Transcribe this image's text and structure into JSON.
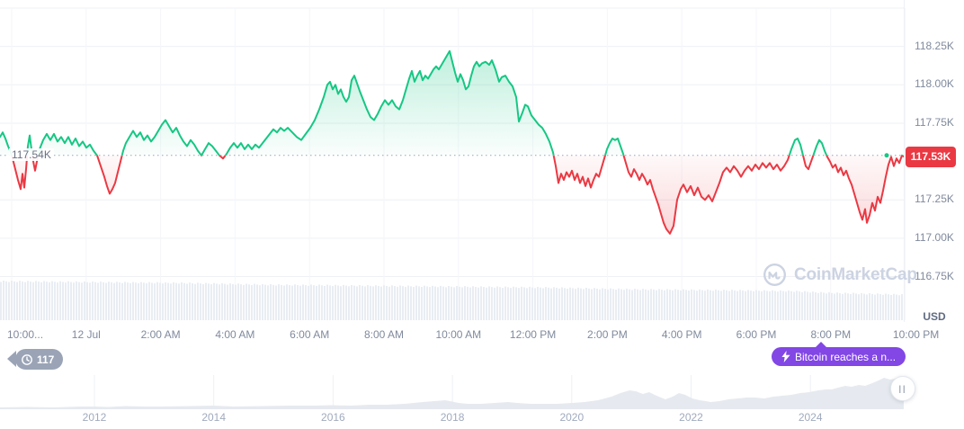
{
  "app": {
    "watermark": "CoinMarketCap"
  },
  "colors": {
    "green": "#16c784",
    "red": "#ea3943",
    "purple": "#8247e5",
    "grid": "#eef0f4",
    "vgrid": "#f5f6f9",
    "axis_text": "#808a9d",
    "volume": "#e9edf3",
    "nav_fill": "#e6eaf0",
    "pill": "#9aa4b6",
    "baseline_dot": "#9aa3b6",
    "badge_bg": "#ea3943",
    "watermark": "#ccd3e2"
  },
  "price_panel": {
    "baseline_label": "117.54K",
    "current_price_label": "117.53K",
    "unit_label": "USD"
  },
  "badges": {
    "history_pill": "117",
    "news": "Bitcoin reaches a n..."
  },
  "chart_data": {
    "type": "area",
    "y_unit": "USD",
    "baseline": 117.54,
    "last": 117.53,
    "ylim": [
      116.46,
      118.5
    ],
    "y_ticks": [
      {
        "label": "118.25K",
        "value": 118.25
      },
      {
        "label": "118.00K",
        "value": 118.0
      },
      {
        "label": "117.75K",
        "value": 117.75
      },
      {
        "label": "117.25K",
        "value": 117.25
      },
      {
        "label": "117.00K",
        "value": 117.0
      },
      {
        "label": "116.75K",
        "value": 116.75
      }
    ],
    "x_ticks": [
      "10:00...",
      "12 Jul",
      "2:00 AM",
      "4:00 AM",
      "6:00 AM",
      "8:00 AM",
      "10:00 AM",
      "12:00 PM",
      "2:00 PM",
      "4:00 PM",
      "6:00 PM",
      "8:00 PM",
      "10:00 PM"
    ],
    "series": [
      [
        0,
        117.66
      ],
      [
        3,
        117.69
      ],
      [
        6,
        117.65
      ],
      [
        9,
        117.6
      ],
      [
        12,
        117.56
      ],
      [
        14,
        117.52
      ],
      [
        17,
        117.45
      ],
      [
        20,
        117.38
      ],
      [
        23,
        117.32
      ],
      [
        25,
        117.42
      ],
      [
        27,
        117.33
      ],
      [
        29,
        117.45
      ],
      [
        31,
        117.6
      ],
      [
        33,
        117.67
      ],
      [
        35,
        117.58
      ],
      [
        37,
        117.5
      ],
      [
        39,
        117.44
      ],
      [
        41,
        117.5
      ],
      [
        44,
        117.58
      ],
      [
        48,
        117.64
      ],
      [
        52,
        117.68
      ],
      [
        56,
        117.64
      ],
      [
        60,
        117.68
      ],
      [
        64,
        117.63
      ],
      [
        68,
        117.66
      ],
      [
        72,
        117.62
      ],
      [
        76,
        117.66
      ],
      [
        80,
        117.61
      ],
      [
        84,
        117.65
      ],
      [
        88,
        117.6
      ],
      [
        92,
        117.63
      ],
      [
        96,
        117.59
      ],
      [
        100,
        117.61
      ],
      [
        104,
        117.57
      ],
      [
        108,
        117.54
      ],
      [
        112,
        117.47
      ],
      [
        116,
        117.4
      ],
      [
        119,
        117.34
      ],
      [
        122,
        117.29
      ],
      [
        125,
        117.32
      ],
      [
        128,
        117.36
      ],
      [
        131,
        117.43
      ],
      [
        134,
        117.5
      ],
      [
        137,
        117.57
      ],
      [
        140,
        117.62
      ],
      [
        144,
        117.66
      ],
      [
        148,
        117.7
      ],
      [
        152,
        117.66
      ],
      [
        156,
        117.69
      ],
      [
        160,
        117.64
      ],
      [
        164,
        117.67
      ],
      [
        168,
        117.63
      ],
      [
        172,
        117.66
      ],
      [
        176,
        117.7
      ],
      [
        180,
        117.74
      ],
      [
        184,
        117.77
      ],
      [
        188,
        117.73
      ],
      [
        192,
        117.69
      ],
      [
        196,
        117.72
      ],
      [
        200,
        117.67
      ],
      [
        204,
        117.63
      ],
      [
        208,
        117.6
      ],
      [
        212,
        117.64
      ],
      [
        216,
        117.61
      ],
      [
        220,
        117.57
      ],
      [
        224,
        117.54
      ],
      [
        228,
        117.58
      ],
      [
        232,
        117.62
      ],
      [
        236,
        117.6
      ],
      [
        240,
        117.57
      ],
      [
        244,
        117.54
      ],
      [
        248,
        117.52
      ],
      [
        252,
        117.55
      ],
      [
        256,
        117.59
      ],
      [
        260,
        117.62
      ],
      [
        264,
        117.59
      ],
      [
        268,
        117.62
      ],
      [
        272,
        117.58
      ],
      [
        276,
        117.61
      ],
      [
        280,
        117.58
      ],
      [
        284,
        117.61
      ],
      [
        288,
        117.59
      ],
      [
        292,
        117.62
      ],
      [
        296,
        117.65
      ],
      [
        300,
        117.68
      ],
      [
        304,
        117.71
      ],
      [
        308,
        117.69
      ],
      [
        312,
        117.72
      ],
      [
        316,
        117.7
      ],
      [
        320,
        117.72
      ],
      [
        325,
        117.69
      ],
      [
        330,
        117.66
      ],
      [
        335,
        117.64
      ],
      [
        340,
        117.68
      ],
      [
        345,
        117.72
      ],
      [
        350,
        117.77
      ],
      [
        355,
        117.84
      ],
      [
        360,
        117.92
      ],
      [
        364,
        118.0
      ],
      [
        367,
        118.02
      ],
      [
        370,
        117.97
      ],
      [
        373,
        118.0
      ],
      [
        376,
        117.94
      ],
      [
        379,
        117.97
      ],
      [
        382,
        117.92
      ],
      [
        385,
        117.89
      ],
      [
        388,
        117.92
      ],
      [
        391,
        118.03
      ],
      [
        394,
        118.06
      ],
      [
        397,
        118.01
      ],
      [
        400,
        117.96
      ],
      [
        404,
        117.9
      ],
      [
        408,
        117.84
      ],
      [
        412,
        117.79
      ],
      [
        416,
        117.77
      ],
      [
        420,
        117.81
      ],
      [
        424,
        117.86
      ],
      [
        428,
        117.9
      ],
      [
        432,
        117.87
      ],
      [
        436,
        117.9
      ],
      [
        440,
        117.86
      ],
      [
        444,
        117.84
      ],
      [
        448,
        117.9
      ],
      [
        452,
        117.98
      ],
      [
        455,
        118.04
      ],
      [
        458,
        118.09
      ],
      [
        461,
        118.02
      ],
      [
        464,
        118.06
      ],
      [
        467,
        118.09
      ],
      [
        470,
        118.03
      ],
      [
        473,
        118.06
      ],
      [
        476,
        118.04
      ],
      [
        479,
        118.07
      ],
      [
        482,
        118.1
      ],
      [
        485,
        118.12
      ],
      [
        488,
        118.1
      ],
      [
        491,
        118.13
      ],
      [
        494,
        118.16
      ],
      [
        497,
        118.19
      ],
      [
        500,
        118.22
      ],
      [
        503,
        118.15
      ],
      [
        506,
        118.08
      ],
      [
        509,
        118.02
      ],
      [
        512,
        118.07
      ],
      [
        515,
        118.03
      ],
      [
        518,
        117.97
      ],
      [
        521,
        117.99
      ],
      [
        524,
        118.06
      ],
      [
        527,
        118.12
      ],
      [
        530,
        118.15
      ],
      [
        533,
        118.12
      ],
      [
        536,
        118.14
      ],
      [
        540,
        118.15
      ],
      [
        544,
        118.13
      ],
      [
        547,
        118.16
      ],
      [
        551,
        118.1
      ],
      [
        555,
        118.02
      ],
      [
        558,
        118.05
      ],
      [
        562,
        118.06
      ],
      [
        566,
        118.02
      ],
      [
        570,
        117.99
      ],
      [
        574,
        117.92
      ],
      [
        577,
        117.76
      ],
      [
        581,
        117.82
      ],
      [
        584,
        117.87
      ],
      [
        587,
        117.86
      ],
      [
        591,
        117.8
      ],
      [
        595,
        117.77
      ],
      [
        599,
        117.74
      ],
      [
        603,
        117.72
      ],
      [
        607,
        117.68
      ],
      [
        611,
        117.63
      ],
      [
        615,
        117.56
      ],
      [
        618,
        117.47
      ],
      [
        621,
        117.36
      ],
      [
        624,
        117.42
      ],
      [
        627,
        117.38
      ],
      [
        630,
        117.43
      ],
      [
        633,
        117.4
      ],
      [
        636,
        117.44
      ],
      [
        639,
        117.38
      ],
      [
        642,
        117.42
      ],
      [
        645,
        117.36
      ],
      [
        648,
        117.4
      ],
      [
        651,
        117.34
      ],
      [
        654,
        117.39
      ],
      [
        657,
        117.33
      ],
      [
        660,
        117.38
      ],
      [
        663,
        117.42
      ],
      [
        666,
        117.4
      ],
      [
        669,
        117.46
      ],
      [
        672,
        117.52
      ],
      [
        675,
        117.58
      ],
      [
        678,
        117.62
      ],
      [
        681,
        117.65
      ],
      [
        684,
        117.64
      ],
      [
        687,
        117.65
      ],
      [
        690,
        117.6
      ],
      [
        693,
        117.55
      ],
      [
        696,
        117.49
      ],
      [
        699,
        117.43
      ],
      [
        702,
        117.4
      ],
      [
        705,
        117.45
      ],
      [
        708,
        117.42
      ],
      [
        711,
        117.38
      ],
      [
        714,
        117.42
      ],
      [
        717,
        117.39
      ],
      [
        720,
        117.35
      ],
      [
        723,
        117.38
      ],
      [
        726,
        117.32
      ],
      [
        729,
        117.27
      ],
      [
        732,
        117.22
      ],
      [
        735,
        117.16
      ],
      [
        738,
        117.1
      ],
      [
        741,
        117.06
      ],
      [
        745,
        117.03
      ],
      [
        749,
        117.08
      ],
      [
        753,
        117.25
      ],
      [
        757,
        117.32
      ],
      [
        760,
        117.35
      ],
      [
        764,
        117.3
      ],
      [
        768,
        117.34
      ],
      [
        772,
        117.28
      ],
      [
        776,
        117.33
      ],
      [
        780,
        117.27
      ],
      [
        784,
        117.25
      ],
      [
        788,
        117.28
      ],
      [
        792,
        117.24
      ],
      [
        796,
        117.3
      ],
      [
        800,
        117.36
      ],
      [
        804,
        117.43
      ],
      [
        808,
        117.46
      ],
      [
        812,
        117.43
      ],
      [
        816,
        117.47
      ],
      [
        820,
        117.44
      ],
      [
        824,
        117.4
      ],
      [
        828,
        117.44
      ],
      [
        832,
        117.47
      ],
      [
        836,
        117.44
      ],
      [
        840,
        117.48
      ],
      [
        844,
        117.45
      ],
      [
        848,
        117.49
      ],
      [
        852,
        117.46
      ],
      [
        856,
        117.49
      ],
      [
        860,
        117.45
      ],
      [
        864,
        117.48
      ],
      [
        868,
        117.44
      ],
      [
        872,
        117.47
      ],
      [
        876,
        117.51
      ],
      [
        880,
        117.58
      ],
      [
        884,
        117.64
      ],
      [
        887,
        117.65
      ],
      [
        890,
        117.61
      ],
      [
        893,
        117.54
      ],
      [
        896,
        117.47
      ],
      [
        899,
        117.45
      ],
      [
        902,
        117.5
      ],
      [
        905,
        117.55
      ],
      [
        908,
        117.6
      ],
      [
        911,
        117.64
      ],
      [
        914,
        117.62
      ],
      [
        917,
        117.57
      ],
      [
        920,
        117.53
      ],
      [
        923,
        117.5
      ],
      [
        926,
        117.46
      ],
      [
        929,
        117.48
      ],
      [
        932,
        117.43
      ],
      [
        935,
        117.46
      ],
      [
        938,
        117.41
      ],
      [
        941,
        117.44
      ],
      [
        944,
        117.39
      ],
      [
        947,
        117.35
      ],
      [
        950,
        117.29
      ],
      [
        953,
        117.23
      ],
      [
        956,
        117.17
      ],
      [
        959,
        117.12
      ],
      [
        962,
        117.19
      ],
      [
        964,
        117.1
      ],
      [
        967,
        117.15
      ],
      [
        970,
        117.23
      ],
      [
        973,
        117.18
      ],
      [
        976,
        117.27
      ],
      [
        979,
        117.23
      ],
      [
        982,
        117.31
      ],
      [
        985,
        117.4
      ],
      [
        988,
        117.48
      ],
      [
        991,
        117.53
      ],
      [
        994,
        117.47
      ],
      [
        997,
        117.52
      ],
      [
        1000,
        117.49
      ],
      [
        1003,
        117.54
      ],
      [
        1006,
        117.53
      ]
    ],
    "volume_profile": [
      [
        0,
        312
      ],
      [
        100,
        313
      ],
      [
        200,
        314
      ],
      [
        300,
        316
      ],
      [
        400,
        317
      ],
      [
        500,
        318
      ],
      [
        600,
        319
      ],
      [
        700,
        321
      ],
      [
        800,
        322
      ],
      [
        880,
        323
      ],
      [
        920,
        325
      ],
      [
        1006,
        327
      ]
    ],
    "navigator": {
      "years": [
        "2012",
        "2014",
        "2016",
        "2018",
        "2020",
        "2022",
        "2024"
      ],
      "silhouette": [
        [
          0,
          2
        ],
        [
          30,
          2.5
        ],
        [
          60,
          2
        ],
        [
          90,
          3
        ],
        [
          105,
          3
        ],
        [
          120,
          2.5
        ],
        [
          140,
          3.5
        ],
        [
          160,
          3
        ],
        [
          180,
          3
        ],
        [
          210,
          3.5
        ],
        [
          237,
          4
        ],
        [
          260,
          3
        ],
        [
          290,
          3.5
        ],
        [
          320,
          4
        ],
        [
          350,
          4
        ],
        [
          368,
          4.5
        ],
        [
          390,
          4
        ],
        [
          410,
          5
        ],
        [
          430,
          5
        ],
        [
          450,
          6
        ],
        [
          470,
          8
        ],
        [
          483,
          9
        ],
        [
          495,
          10
        ],
        [
          500,
          9
        ],
        [
          510,
          7
        ],
        [
          520,
          6
        ],
        [
          535,
          6
        ],
        [
          550,
          7
        ],
        [
          565,
          8
        ],
        [
          575,
          7
        ],
        [
          590,
          6
        ],
        [
          605,
          6
        ],
        [
          620,
          6
        ],
        [
          637,
          7
        ],
        [
          650,
          8
        ],
        [
          665,
          10
        ],
        [
          680,
          14
        ],
        [
          690,
          18
        ],
        [
          700,
          21
        ],
        [
          707,
          20
        ],
        [
          715,
          17
        ],
        [
          722,
          19
        ],
        [
          728,
          16
        ],
        [
          735,
          13
        ],
        [
          740,
          11
        ],
        [
          748,
          14
        ],
        [
          755,
          18
        ],
        [
          762,
          16
        ],
        [
          770,
          12
        ],
        [
          778,
          10
        ],
        [
          785,
          9
        ],
        [
          790,
          8
        ],
        [
          800,
          9
        ],
        [
          810,
          11
        ],
        [
          820,
          12
        ],
        [
          830,
          13
        ],
        [
          840,
          13
        ],
        [
          850,
          12
        ],
        [
          860,
          14
        ],
        [
          870,
          15
        ],
        [
          880,
          16
        ],
        [
          890,
          18
        ],
        [
          900,
          19
        ],
        [
          910,
          21
        ],
        [
          918,
          22
        ],
        [
          925,
          22
        ],
        [
          932,
          24
        ],
        [
          940,
          26
        ],
        [
          947,
          25
        ],
        [
          955,
          27
        ],
        [
          962,
          26
        ],
        [
          970,
          29
        ],
        [
          977,
          32
        ],
        [
          983,
          35
        ],
        [
          990,
          33
        ],
        [
          996,
          34
        ],
        [
          1001,
          32
        ],
        [
          1005,
          33
        ]
      ]
    }
  }
}
